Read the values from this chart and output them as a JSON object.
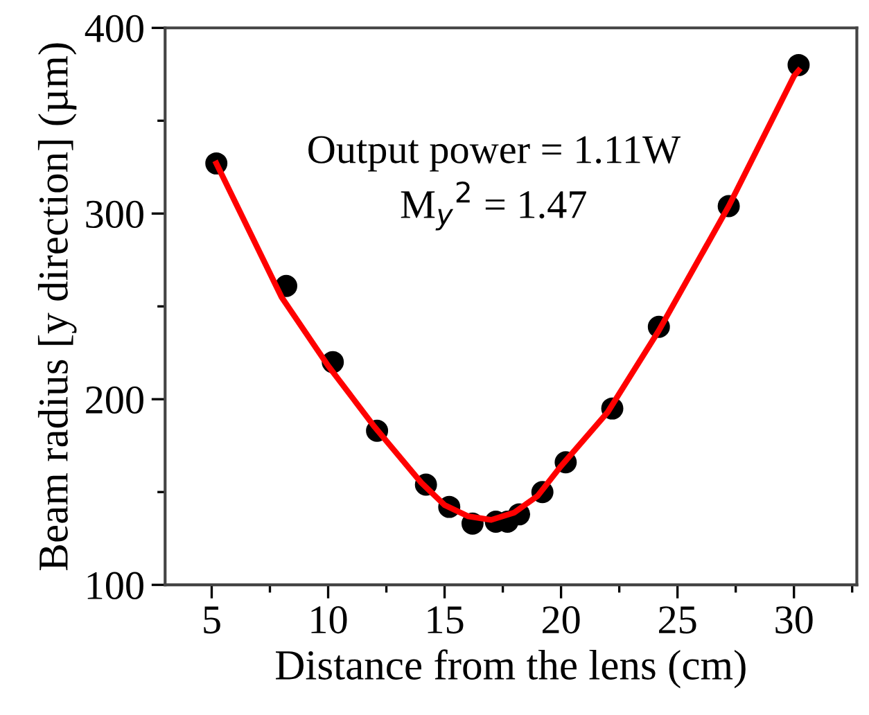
{
  "chart_data": {
    "type": "scatter",
    "xlabel": "Distance from the lens (cm)",
    "ylabel": "Beam radius [y direction] (µm)",
    "xlim": [
      3,
      32.7
    ],
    "ylim": [
      100,
      400
    ],
    "xticks": [
      5,
      10,
      15,
      20,
      25,
      30
    ],
    "yticks": [
      100,
      200,
      300,
      400
    ],
    "grid": false,
    "legend": false,
    "marker": "circle",
    "annotations": [
      "Output power = 1.11W",
      "M$_{y}$$^{2}$ = 1.47"
    ],
    "series": [
      {
        "color": "#000000",
        "x": [
          5.2,
          8.2,
          10.2,
          12.1,
          14.2,
          15.2,
          16.2,
          17.2,
          17.7,
          18.2,
          19.2,
          20.2,
          22.2,
          24.2,
          27.2,
          30.2
        ],
        "values": [
          327,
          261,
          220,
          183,
          154,
          142,
          133,
          134,
          134,
          138,
          150,
          166,
          195,
          239,
          304,
          380
        ]
      },
      {
        "type": "line",
        "color": "#ff0000",
        "line_style": "solid",
        "marker": "none",
        "x": [
          5.2,
          8,
          10,
          12,
          14,
          15,
          16,
          17,
          18,
          19,
          20,
          22,
          24.2,
          27.2,
          30,
          30.2
        ],
        "values": [
          327,
          255,
          218,
          185,
          155,
          143,
          137,
          135,
          139,
          148,
          164,
          193,
          237,
          304,
          374,
          377
        ]
      }
    ]
  }
}
